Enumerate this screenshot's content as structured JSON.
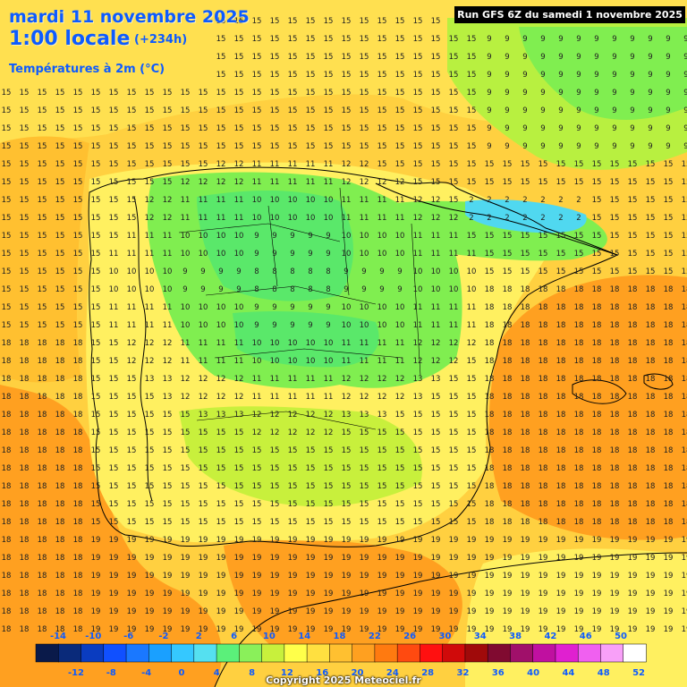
{
  "header": {
    "date": "mardi 11 novembre 2025",
    "time": "1:00 locale",
    "lead": "(+234h)",
    "variable": "Températures à 2m (°C)"
  },
  "run_banner": "Run GFS 6Z du samedi 1 novembre 2025",
  "copyright": "Copyright 2025 Meteociel.fr",
  "legend": {
    "upper_ticks": [
      "-14",
      "-10",
      "-6",
      "-2",
      "2",
      "6",
      "10",
      "14",
      "18",
      "22",
      "26",
      "30",
      "34",
      "38",
      "42",
      "46",
      "50"
    ],
    "lower_ticks": [
      "-12",
      "-8",
      "-4",
      "0",
      "4",
      "8",
      "12",
      "16",
      "20",
      "24",
      "28",
      "32",
      "36",
      "40",
      "44",
      "48",
      "52"
    ],
    "colors": [
      "#0a1a4a",
      "#0a2a7a",
      "#0a3cc0",
      "#1050ff",
      "#1a78ff",
      "#1aa0ff",
      "#35c8ff",
      "#55e0f0",
      "#5bf07a",
      "#8af05a",
      "#c8f03c",
      "#ffff4a",
      "#ffe040",
      "#ffc030",
      "#ffa020",
      "#ff7a10",
      "#ff4a10",
      "#ff1010",
      "#d00a0a",
      "#a00a0a",
      "#800a30",
      "#a0106a",
      "#c010a0",
      "#e020d0",
      "#f060f0",
      "#f8a0f8",
      "#ffffff"
    ]
  },
  "colors": {
    "sea_warm": "#ffa030",
    "sea_mild": "#ffd040",
    "land_cool": "#b8f040",
    "land_cold": "#5ae86a",
    "pyrenees": "#50d8f0",
    "title_blue": "#0d5bff"
  }
}
